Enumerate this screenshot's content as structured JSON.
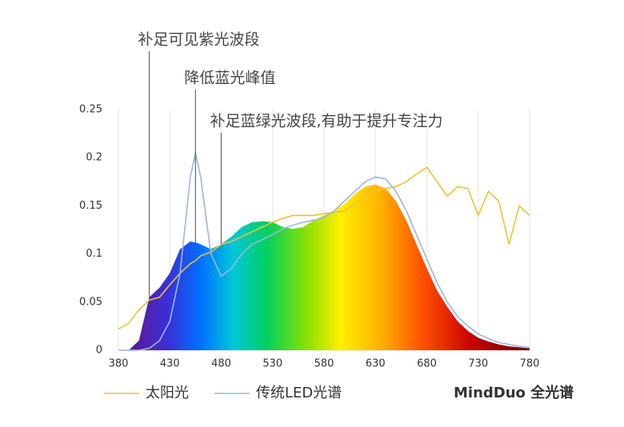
{
  "chart_data": {
    "type": "line",
    "annotations": [
      {
        "text": "补足可见紫光波段",
        "x": 410
      },
      {
        "text": "降低蓝光峰值",
        "x": 455
      },
      {
        "text": "补足蓝绿光波段,有助于提升专注力",
        "x": 480
      }
    ],
    "x": [
      380,
      390,
      400,
      410,
      420,
      430,
      440,
      450,
      455,
      460,
      470,
      480,
      490,
      500,
      510,
      520,
      530,
      540,
      550,
      560,
      570,
      580,
      590,
      600,
      610,
      620,
      630,
      640,
      650,
      660,
      670,
      680,
      690,
      700,
      710,
      720,
      730,
      740,
      750,
      760,
      770,
      780
    ],
    "series": [
      {
        "name": "太阳光",
        "color": "#f0c233",
        "values": [
          0.022,
          0.028,
          0.042,
          0.052,
          0.055,
          0.068,
          0.08,
          0.09,
          0.093,
          0.098,
          0.102,
          0.11,
          0.113,
          0.118,
          0.123,
          0.128,
          0.133,
          0.137,
          0.14,
          0.14,
          0.14,
          0.142,
          0.143,
          0.145,
          0.152,
          0.16,
          0.166,
          0.168,
          0.17,
          0.175,
          0.183,
          0.19,
          0.175,
          0.16,
          0.17,
          0.168,
          0.14,
          0.165,
          0.155,
          0.11,
          0.15,
          0.14
        ]
      },
      {
        "name": "传统LED光谱",
        "color": "#9ab6e8",
        "values": [
          0,
          0,
          0,
          0.002,
          0.01,
          0.03,
          0.08,
          0.18,
          0.205,
          0.18,
          0.1,
          0.077,
          0.085,
          0.1,
          0.11,
          0.115,
          0.12,
          0.126,
          0.13,
          0.133,
          0.135,
          0.138,
          0.145,
          0.155,
          0.165,
          0.175,
          0.18,
          0.178,
          0.165,
          0.145,
          0.12,
          0.095,
          0.07,
          0.05,
          0.035,
          0.025,
          0.017,
          0.012,
          0.008,
          0.006,
          0.004,
          0.003
        ]
      },
      {
        "name": "MindDuo 全光谱",
        "fill": "spectrum",
        "values": [
          0,
          0,
          0.01,
          0.055,
          0.065,
          0.08,
          0.105,
          0.113,
          0.112,
          0.11,
          0.105,
          0.11,
          0.118,
          0.128,
          0.133,
          0.134,
          0.133,
          0.128,
          0.126,
          0.128,
          0.135,
          0.14,
          0.145,
          0.152,
          0.162,
          0.17,
          0.172,
          0.168,
          0.155,
          0.135,
          0.11,
          0.085,
          0.062,
          0.045,
          0.03,
          0.02,
          0.013,
          0.009,
          0.006,
          0.004,
          0.003,
          0.002
        ]
      }
    ],
    "xlim": [
      380,
      780
    ],
    "xticks": [
      380,
      430,
      480,
      530,
      580,
      630,
      680,
      730,
      780
    ],
    "ylim": [
      0,
      0.25
    ],
    "yticks": [
      0,
      0.05,
      0.1,
      0.15,
      0.2,
      0.25
    ],
    "grid": true
  }
}
